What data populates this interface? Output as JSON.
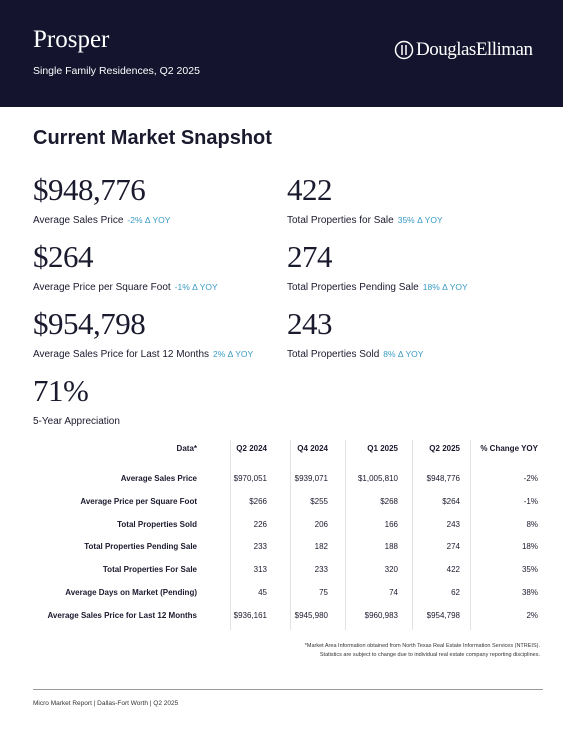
{
  "header": {
    "title": "Prosper",
    "subtitle": "Single Family Residences, Q2 2025",
    "brand": "DouglasElliman"
  },
  "snapshot": {
    "title": "Current Market Snapshot",
    "metrics": [
      {
        "value": "$948,776",
        "label": "Average Sales Price",
        "change": "-2% Δ YOY"
      },
      {
        "value": "422",
        "label": "Total Properties for Sale",
        "change": "35% Δ YOY"
      },
      {
        "value": "$264",
        "label": "Average Price per Square Foot",
        "change": "-1% Δ YOY"
      },
      {
        "value": "274",
        "label": "Total Properties Pending Sale",
        "change": "18% Δ YOY"
      },
      {
        "value": "$954,798",
        "label": "Average Sales Price for Last 12 Months",
        "change": "2% Δ YOY"
      },
      {
        "value": "243",
        "label": "Total Properties Sold",
        "change": "8% Δ YOY"
      },
      {
        "value": "71%",
        "label": "5-Year Appreciation"
      }
    ]
  },
  "table": {
    "header": [
      "Data*",
      "Q2 2024",
      "Q4 2024",
      "Q1 2025",
      "Q2 2025",
      "% Change YOY"
    ],
    "rows": [
      [
        "Average Sales Price",
        "$970,051",
        "$939,071",
        "$1,005,810",
        "$948,776",
        "-2%"
      ],
      [
        "Average Price per Square Foot",
        "$266",
        "$255",
        "$268",
        "$264",
        "-1%"
      ],
      [
        "Total Properties Sold",
        "226",
        "206",
        "166",
        "243",
        "8%"
      ],
      [
        "Total Properties Pending Sale",
        "233",
        "182",
        "188",
        "274",
        "18%"
      ],
      [
        "Total Properties For Sale",
        "313",
        "233",
        "320",
        "422",
        "35%"
      ],
      [
        "Average Days on Market (Pending)",
        "45",
        "75",
        "74",
        "62",
        "38%"
      ],
      [
        "Average Sales Price for Last 12 Months",
        "$936,161",
        "$945,980",
        "$960,983",
        "$954,798",
        "2%"
      ]
    ]
  },
  "footnote": [
    "*Market Area Information obtained from North Texas Real Estate Information Services (NTREIS).",
    "Statistics are subject to change due to individual real estate company reporting disciplines."
  ],
  "footer": "Micro Market Report | Dallas-Fort Worth | Q2 2025"
}
